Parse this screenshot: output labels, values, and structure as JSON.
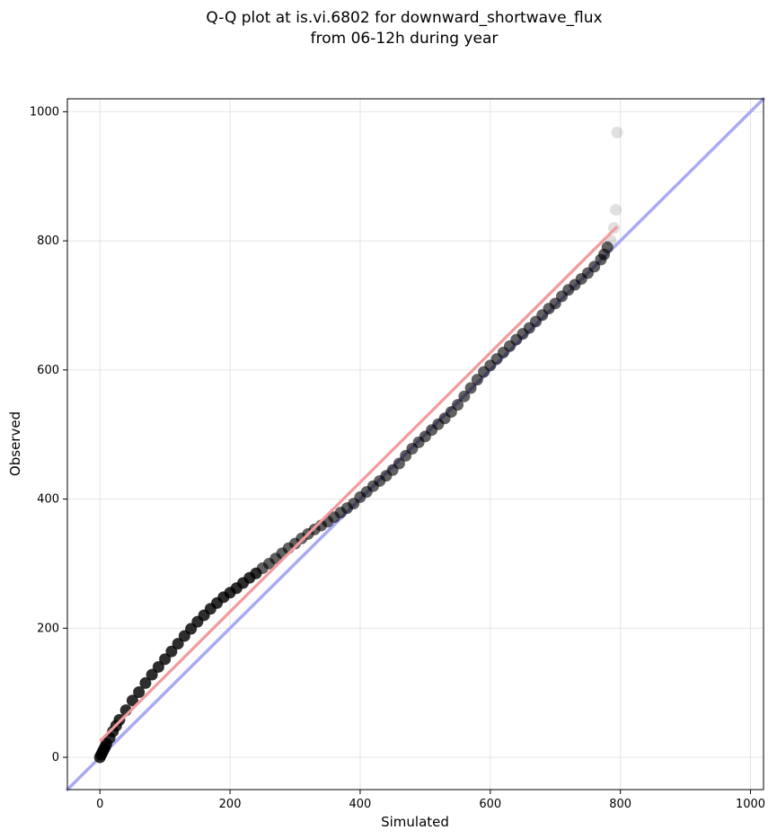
{
  "chart_data": {
    "type": "scatter",
    "title_lines": [
      "Q-Q plot at is.vi.6802 for downward_shortwave_flux",
      "from 06-12h during year"
    ],
    "xlabel": "Simulated",
    "ylabel": "Observed",
    "xlim": [
      -50,
      1020
    ],
    "ylim": [
      -50,
      1020
    ],
    "xticks": [
      0,
      200,
      400,
      600,
      800,
      1000
    ],
    "yticks": [
      0,
      200,
      400,
      600,
      800,
      1000
    ],
    "grid": true,
    "series": [
      {
        "kind": "quantile_points",
        "color": "#000000",
        "x": [
          0,
          2,
          4,
          6,
          8,
          10,
          15,
          20,
          25,
          30,
          40,
          50,
          60,
          70,
          80,
          90,
          100,
          110,
          120,
          130,
          140,
          150,
          160,
          170,
          180,
          190,
          200,
          210,
          220,
          230,
          240,
          250,
          260,
          270,
          280,
          290,
          300,
          310,
          320,
          330,
          340,
          350,
          360,
          370,
          380,
          390,
          400,
          410,
          420,
          430,
          440,
          450,
          460,
          470,
          480,
          490,
          500,
          510,
          520,
          530,
          540,
          550,
          560,
          570,
          580,
          590,
          600,
          610,
          620,
          630,
          640,
          650,
          660,
          670,
          680,
          690,
          700,
          710,
          720,
          730,
          740,
          750,
          760,
          770,
          775,
          780,
          785,
          790,
          793,
          795
        ],
        "y": [
          0,
          4,
          8,
          12,
          16,
          21,
          30,
          40,
          49,
          58,
          73,
          88,
          101,
          115,
          128,
          140,
          152,
          164,
          176,
          188,
          199,
          210,
          220,
          230,
          239,
          248,
          255,
          262,
          270,
          278,
          285,
          293,
          300,
          308,
          316,
          324,
          331,
          339,
          346,
          353,
          359,
          365,
          372,
          379,
          386,
          393,
          403,
          411,
          420,
          428,
          436,
          445,
          455,
          467,
          478,
          488,
          497,
          507,
          516,
          525,
          535,
          546,
          559,
          572,
          585,
          597,
          607,
          617,
          627,
          637,
          647,
          656,
          665,
          675,
          685,
          695,
          703,
          714,
          724,
          732,
          741,
          750,
          760,
          771,
          779,
          790,
          801,
          820,
          848,
          968
        ]
      },
      {
        "kind": "identity_line",
        "color": "#aaaaf2",
        "x": [
          -50,
          1020
        ],
        "y": [
          -50,
          1020
        ]
      },
      {
        "kind": "fit_line",
        "color": "#f29b9b",
        "x": [
          0,
          795
        ],
        "y": [
          25,
          822
        ]
      }
    ]
  }
}
